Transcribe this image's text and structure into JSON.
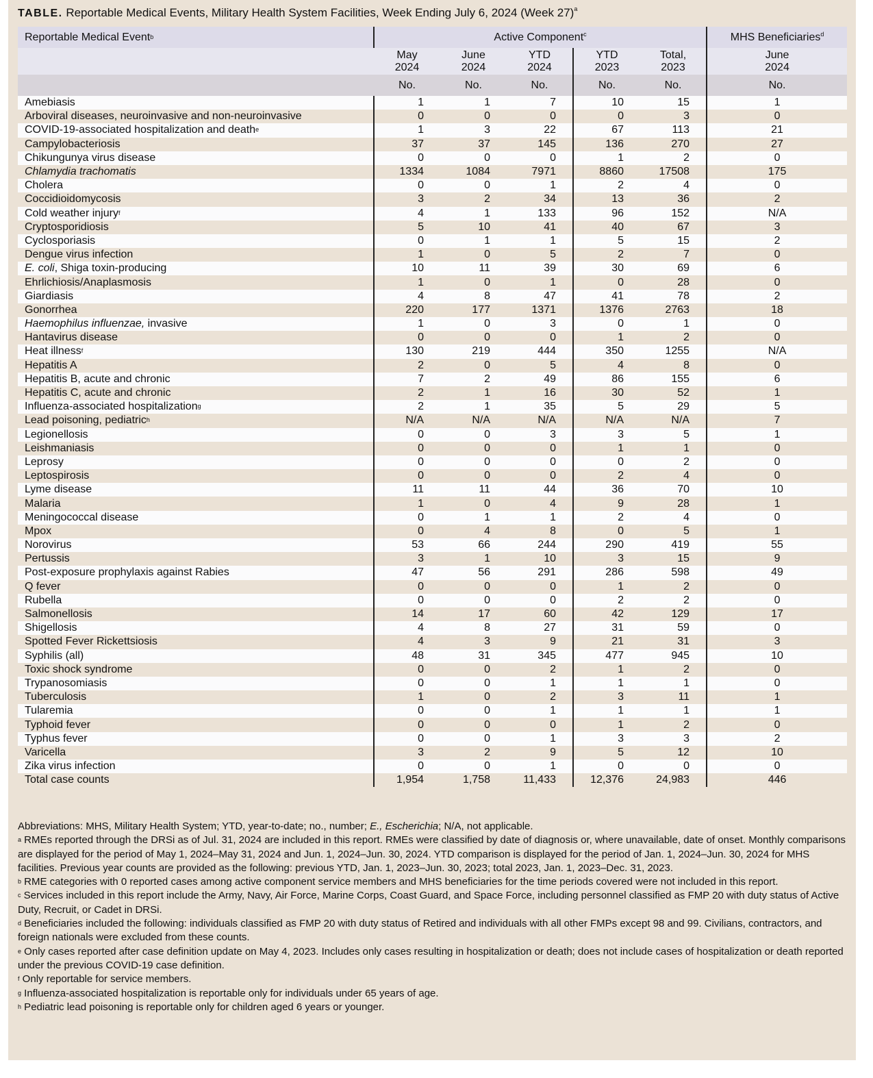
{
  "title": {
    "label": "TABLE.",
    "text": " Reportable Medical Events, Military Health System Facilities, Week Ending July 6, 2024 (Week 27)",
    "sup": "a"
  },
  "header": {
    "event_col": "Reportable Medical Event",
    "event_sup": "b",
    "active": "Active Component",
    "active_sup": "c",
    "mhs": "MHS Beneficiaries",
    "mhs_sup": "d",
    "columns": [
      [
        "May",
        "2024"
      ],
      [
        "June",
        "2024"
      ],
      [
        "YTD",
        "2024"
      ],
      [
        "YTD",
        "2023"
      ],
      [
        "Total,",
        "2023"
      ],
      [
        "June",
        "2024"
      ]
    ],
    "unit": "No."
  },
  "rows": [
    {
      "t": "Amebiasis",
      "v": [
        "1",
        "1",
        "7",
        "10",
        "15",
        "1"
      ]
    },
    {
      "t": "Arboviral diseases, neuroinvasive and non-neuroinvasive",
      "v": [
        "0",
        "0",
        "0",
        "0",
        "3",
        "0"
      ]
    },
    {
      "t": "COVID-19-associated hospitalization and death",
      "sup": "e",
      "v": [
        "1",
        "3",
        "22",
        "67",
        "113",
        "21"
      ]
    },
    {
      "t": "Campylobacteriosis",
      "v": [
        "37",
        "37",
        "145",
        "136",
        "270",
        "27"
      ]
    },
    {
      "t": "Chikungunya virus disease",
      "v": [
        "0",
        "0",
        "0",
        "1",
        "2",
        "0"
      ]
    },
    {
      "i": "Chlamydia trachomatis",
      "v": [
        "1334",
        "1084",
        "7971",
        "8860",
        "17508",
        "175"
      ]
    },
    {
      "t": "Cholera",
      "v": [
        "0",
        "0",
        "1",
        "2",
        "4",
        "0"
      ]
    },
    {
      "t": "Coccidioidomycosis",
      "v": [
        "3",
        "2",
        "34",
        "13",
        "36",
        "2"
      ]
    },
    {
      "t": "Cold weather injury",
      "sup": "f",
      "v": [
        "4",
        "1",
        "133",
        "96",
        "152",
        "N/A"
      ]
    },
    {
      "t": "Cryptosporidiosis",
      "v": [
        "5",
        "10",
        "41",
        "40",
        "67",
        "3"
      ]
    },
    {
      "t": "Cyclosporiasis",
      "v": [
        "0",
        "1",
        "1",
        "5",
        "15",
        "2"
      ]
    },
    {
      "t": "Dengue virus infection",
      "v": [
        "1",
        "0",
        "5",
        "2",
        "7",
        "0"
      ]
    },
    {
      "i": "E. coli",
      "t": ", Shiga toxin-producing",
      "v": [
        "10",
        "11",
        "39",
        "30",
        "69",
        "6"
      ]
    },
    {
      "t": "Ehrlichiosis/Anaplasmosis",
      "v": [
        "1",
        "0",
        "1",
        "0",
        "28",
        "0"
      ]
    },
    {
      "t": "Giardiasis",
      "v": [
        "4",
        "8",
        "47",
        "41",
        "78",
        "2"
      ]
    },
    {
      "t": "Gonorrhea",
      "v": [
        "220",
        "177",
        "1371",
        "1376",
        "2763",
        "18"
      ]
    },
    {
      "i": "Haemophilus influenzae,",
      "t": " invasive",
      "v": [
        "1",
        "0",
        "3",
        "0",
        "1",
        "0"
      ]
    },
    {
      "t": "Hantavirus disease",
      "v": [
        "0",
        "0",
        "0",
        "1",
        "2",
        "0"
      ]
    },
    {
      "t": "Heat illness",
      "sup": "f",
      "v": [
        "130",
        "219",
        "444",
        "350",
        "1255",
        "N/A"
      ]
    },
    {
      "t": "Hepatitis A",
      "v": [
        "2",
        "0",
        "5",
        "4",
        "8",
        "0"
      ]
    },
    {
      "t": "Hepatitis B, acute and chronic",
      "v": [
        "7",
        "2",
        "49",
        "86",
        "155",
        "6"
      ]
    },
    {
      "t": "Hepatitis C, acute and chronic",
      "v": [
        "2",
        "1",
        "16",
        "30",
        "52",
        "1"
      ]
    },
    {
      "t": "Influenza-associated hospitalization",
      "sup": "g",
      "v": [
        "2",
        "1",
        "35",
        "5",
        "29",
        "5"
      ]
    },
    {
      "t": "Lead poisoning, pediatric",
      "sup": "h",
      "v": [
        "N/A",
        "N/A",
        "N/A",
        "N/A",
        "N/A",
        "7"
      ]
    },
    {
      "t": "Legionellosis",
      "v": [
        "0",
        "0",
        "3",
        "3",
        "5",
        "1"
      ]
    },
    {
      "t": "Leishmaniasis",
      "v": [
        "0",
        "0",
        "0",
        "1",
        "1",
        "0"
      ]
    },
    {
      "t": "Leprosy",
      "v": [
        "0",
        "0",
        "0",
        "0",
        "2",
        "0"
      ]
    },
    {
      "t": "Leptospirosis",
      "v": [
        "0",
        "0",
        "0",
        "2",
        "4",
        "0"
      ]
    },
    {
      "t": "Lyme disease",
      "v": [
        "11",
        "11",
        "44",
        "36",
        "70",
        "10"
      ]
    },
    {
      "t": "Malaria",
      "v": [
        "1",
        "0",
        "4",
        "9",
        "28",
        "1"
      ]
    },
    {
      "t": "Meningococcal disease",
      "v": [
        "0",
        "1",
        "1",
        "2",
        "4",
        "0"
      ]
    },
    {
      "t": "Mpox",
      "v": [
        "0",
        "4",
        "8",
        "0",
        "5",
        "1"
      ]
    },
    {
      "t": "Norovirus",
      "v": [
        "53",
        "66",
        "244",
        "290",
        "419",
        "55"
      ]
    },
    {
      "t": "Pertussis",
      "v": [
        "3",
        "1",
        "10",
        "3",
        "15",
        "9"
      ]
    },
    {
      "t": "Post-exposure prophylaxis against Rabies",
      "v": [
        "47",
        "56",
        "291",
        "286",
        "598",
        "49"
      ]
    },
    {
      "t": "Q fever",
      "v": [
        "0",
        "0",
        "0",
        "1",
        "2",
        "0"
      ]
    },
    {
      "t": "Rubella",
      "v": [
        "0",
        "0",
        "0",
        "2",
        "2",
        "0"
      ]
    },
    {
      "t": "Salmonellosis",
      "v": [
        "14",
        "17",
        "60",
        "42",
        "129",
        "17"
      ]
    },
    {
      "t": "Shigellosis",
      "v": [
        "4",
        "8",
        "27",
        "31",
        "59",
        "0"
      ]
    },
    {
      "t": "Spotted Fever Rickettsiosis",
      "v": [
        "4",
        "3",
        "9",
        "21",
        "31",
        "3"
      ]
    },
    {
      "t": "Syphilis (all)",
      "v": [
        "48",
        "31",
        "345",
        "477",
        "945",
        "10"
      ]
    },
    {
      "t": "Toxic shock syndrome",
      "v": [
        "0",
        "0",
        "2",
        "1",
        "2",
        "0"
      ]
    },
    {
      "t": "Trypanosomiasis",
      "v": [
        "0",
        "0",
        "1",
        "1",
        "1",
        "0"
      ]
    },
    {
      "t": "Tuberculosis",
      "v": [
        "1",
        "0",
        "2",
        "3",
        "11",
        "1"
      ]
    },
    {
      "t": "Tularemia",
      "v": [
        "0",
        "0",
        "1",
        "1",
        "1",
        "1"
      ]
    },
    {
      "t": "Typhoid fever",
      "v": [
        "0",
        "0",
        "0",
        "1",
        "2",
        "0"
      ]
    },
    {
      "t": "Typhus fever",
      "v": [
        "0",
        "0",
        "1",
        "3",
        "3",
        "2"
      ]
    },
    {
      "t": "Varicella",
      "v": [
        "3",
        "2",
        "9",
        "5",
        "12",
        "10"
      ]
    },
    {
      "t": "Zika virus infection",
      "v": [
        "0",
        "0",
        "1",
        "0",
        "0",
        "0"
      ]
    },
    {
      "t": "Total case counts",
      "v": [
        "1,954",
        "1,758",
        "11,433",
        "12,376",
        "24,983",
        "446"
      ]
    }
  ],
  "footnotes": [
    {
      "sup": "",
      "pre": "Abbreviations: MHS, Military Health System; YTD, year-to-date; no., number; ",
      "i": "E., Escherichia",
      "t": "; N/A, not applicable."
    },
    {
      "sup": "a",
      "t": " RMEs reported through the DRSi as of Jul. 31, 2024 are included in this report. RMEs were classified by date of diagnosis or, where unavailable, date of onset. Monthly comparisons are displayed for the period of May 1, 2024–May 31, 2024 and Jun. 1, 2024–Jun. 30, 2024. YTD comparison is displayed for the period of Jan. 1, 2024–Jun. 30, 2024 for MHS facilities. Previous year counts are provided as the following: previous YTD, Jan. 1, 2023–Jun. 30, 2023; total 2023, Jan. 1, 2023–Dec. 31, 2023."
    },
    {
      "sup": "b",
      "t": " RME categories with 0 reported cases among active component service members and MHS beneficiaries for the time periods covered were not included in this report."
    },
    {
      "sup": "c",
      "t": " Services included in this report include the Army, Navy, Air Force, Marine Corps, Coast Guard, and Space Force, including personnel classified as FMP 20 with duty status of Active Duty, Recruit, or Cadet in DRSi."
    },
    {
      "sup": "d",
      "t": " Beneficiaries included the following: individuals classified as FMP 20 with duty status of Retired and individuals with all other FMPs except 98 and 99. Civilians, contractors, and foreign nationals were excluded from these counts."
    },
    {
      "sup": "e",
      "t": " Only cases reported after case definition update on May 4, 2023. Includes only cases resulting in hospitalization or death; does not include cases of hospitalization or death reported under the previous COVID-19 case definition."
    },
    {
      "sup": "f",
      "t": " Only reportable for service members."
    },
    {
      "sup": "g",
      "t": " Influenza-associated hospitalization is reportable only for individuals under 65 years of age."
    },
    {
      "sup": "h",
      "t": " Pediatric lead poisoning is reportable only for children aged 6 years or younger."
    }
  ]
}
